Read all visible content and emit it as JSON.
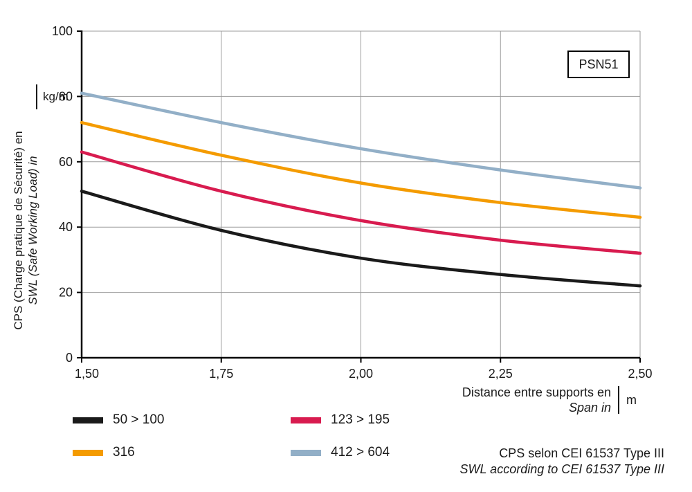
{
  "badge": "PSN51",
  "axes": {
    "x_label_fr": "Distance entre supports en",
    "x_label_en": "Span in",
    "x_unit": "m",
    "y_label_fr": "CPS (Charge pratique de Sécurité) en",
    "y_label_en": "SWL (Safe Working Load) in",
    "y_unit": "kg/m"
  },
  "footnote": {
    "line1": "CPS selon CEI 61537 Type III",
    "line2": "SWL according to CEI 61537 Type III"
  },
  "chart_data": {
    "type": "line",
    "title": "PSN51",
    "x": [
      1.5,
      1.75,
      2.0,
      2.25,
      2.5
    ],
    "x_tick_labels": [
      "1,50",
      "1,75",
      "2,00",
      "2,25",
      "2,50"
    ],
    "y_ticks": [
      0,
      20,
      40,
      60,
      80,
      100
    ],
    "xlim": [
      1.5,
      2.5
    ],
    "ylim": [
      0,
      100
    ],
    "grid": true,
    "xlabel": "Distance entre supports en / Span in (m)",
    "ylabel": "CPS / SWL (kg/m)",
    "legend_position": "bottom-left",
    "series": [
      {
        "name": "50 > 100",
        "color": "#1a1a1a",
        "values": [
          51,
          39,
          30.5,
          25.5,
          22
        ]
      },
      {
        "name": "316",
        "color": "#F49B00",
        "values": [
          72,
          62,
          53.5,
          47.5,
          43
        ]
      },
      {
        "name": "123 > 195",
        "color": "#D81B4F",
        "values": [
          63,
          51,
          42,
          36,
          32
        ]
      },
      {
        "name": "412 > 604",
        "color": "#92AFC7",
        "values": [
          81,
          72,
          64,
          57.5,
          52
        ]
      }
    ],
    "grid_color": "#9b9b9b",
    "axis_color": "#000000"
  }
}
